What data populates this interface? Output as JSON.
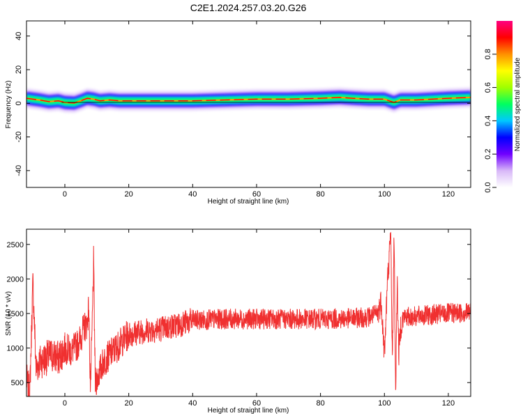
{
  "title": "C2E1.2024.257.03.20.G26",
  "chart_data": [
    {
      "type": "heatmap",
      "xlabel": "Height of straight line (km)",
      "ylabel": "Frequency (Hz)",
      "xlim": [
        -12,
        127
      ],
      "ylim": [
        -50,
        49
      ],
      "xticks": [
        0,
        20,
        40,
        60,
        80,
        100,
        120
      ],
      "yticks": [
        -40,
        -20,
        0,
        20,
        40
      ],
      "colorbar": {
        "label": "Normalized spectral amplitude",
        "range": [
          0,
          1
        ],
        "ticks": [
          "0.0",
          "0.2",
          "0.4",
          "0.6",
          "0.8"
        ],
        "tick_values": [
          0,
          0.2,
          0.4,
          0.6,
          0.8
        ],
        "colors": [
          "#ffffff",
          "#d8b8f8",
          "#7000ff",
          "#0000ff",
          "#00c8ff",
          "#00ff60",
          "#a0ff00",
          "#ffff00",
          "#ff9000",
          "#ff0000",
          "#ff0080"
        ]
      },
      "ridge": {
        "height_km": [
          -12,
          -8,
          -5,
          -2,
          0,
          3,
          5,
          7,
          9,
          11,
          14,
          17,
          22,
          30,
          40,
          50,
          60,
          70,
          80,
          86,
          90,
          95,
          100,
          103,
          105,
          110,
          115,
          120,
          127
        ],
        "frequency_hz": [
          3,
          2,
          1,
          1.5,
          0.5,
          0.2,
          1.5,
          3,
          2.5,
          1.5,
          2,
          1.5,
          1.5,
          1.5,
          1.5,
          2,
          2.5,
          2.5,
          3,
          3.5,
          3,
          2.5,
          2.5,
          0.5,
          2,
          2,
          2.5,
          3,
          3.5
        ]
      }
    },
    {
      "type": "line",
      "xlabel": "Height of straight line (km)",
      "ylabel": "SNR (10 * v/v)",
      "xlim": [
        -12,
        127
      ],
      "ylim": [
        300,
        2720
      ],
      "xticks": [
        0,
        20,
        40,
        60,
        80,
        100,
        120
      ],
      "yticks": [
        500,
        1000,
        1500,
        2000,
        2500
      ],
      "color": "#f03030",
      "series": [
        {
          "x": [
            -12,
            -11,
            -10,
            -9,
            -8,
            -6,
            -4,
            -2,
            0,
            2,
            4,
            5,
            6,
            7,
            7.5,
            8,
            8.5,
            9,
            9.5,
            10,
            12,
            15,
            18,
            20,
            25,
            30,
            35,
            40,
            50,
            60,
            70,
            80,
            90,
            95,
            98,
            99,
            100,
            101,
            102,
            102.5,
            103,
            103.5,
            104,
            104.5,
            105,
            106,
            108,
            110,
            115,
            120,
            127
          ],
          "y": [
            550,
            300,
            1950,
            700,
            800,
            850,
            900,
            850,
            1000,
            950,
            1050,
            1150,
            1300,
            1350,
            1600,
            400,
            1200,
            2250,
            500,
            550,
            800,
            950,
            1100,
            1200,
            1250,
            1280,
            1330,
            1400,
            1420,
            1420,
            1420,
            1420,
            1430,
            1450,
            1500,
            1700,
            900,
            2000,
            2650,
            700,
            2700,
            350,
            2000,
            900,
            1300,
            1450,
            1450,
            1460,
            1480,
            1500,
            1520
          ]
        }
      ]
    }
  ]
}
